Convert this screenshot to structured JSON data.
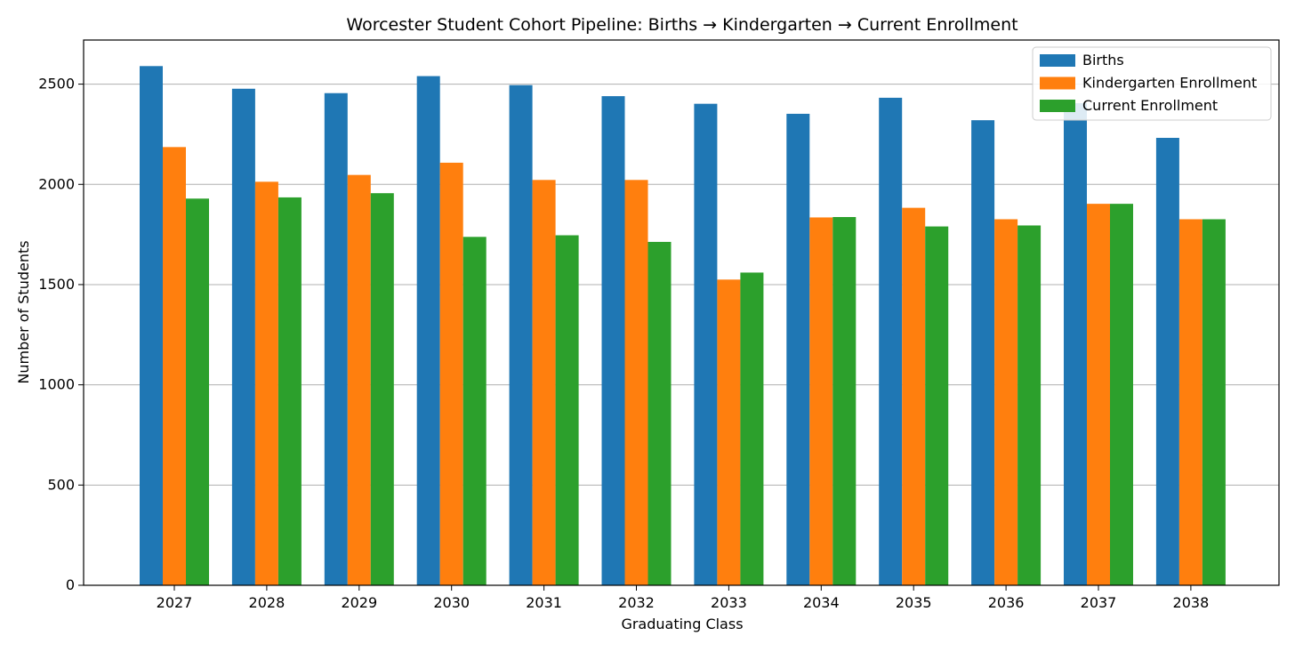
{
  "chart_data": {
    "type": "bar",
    "title": "Worcester Student Cohort Pipeline: Births → Kindergarten → Current Enrollment",
    "xlabel": "Graduating Class",
    "ylabel": "Number of Students",
    "categories": [
      "2027",
      "2028",
      "2029",
      "2030",
      "2031",
      "2032",
      "2033",
      "2034",
      "2035",
      "2036",
      "2037",
      "2038"
    ],
    "series": [
      {
        "name": "Births",
        "color": "#1f77b4",
        "values": [
          2590,
          2477,
          2455,
          2540,
          2495,
          2440,
          2402,
          2352,
          2432,
          2320,
          2405,
          2232
        ]
      },
      {
        "name": "Kindergarten Enrollment",
        "color": "#ff7f0e",
        "values": [
          2186,
          2013,
          2047,
          2108,
          2022,
          2022,
          1525,
          1835,
          1883,
          1826,
          1903,
          1826
        ]
      },
      {
        "name": "Current Enrollment",
        "color": "#2ca02c",
        "values": [
          1929,
          1935,
          1956,
          1738,
          1746,
          1713,
          1560,
          1837,
          1790,
          1795,
          1903,
          1826
        ]
      }
    ],
    "ylim": [
      0,
      2720
    ],
    "yticks": [
      0,
      500,
      1000,
      1500,
      2000,
      2500
    ],
    "grid": "horizontal",
    "legend_position": "top-right"
  }
}
